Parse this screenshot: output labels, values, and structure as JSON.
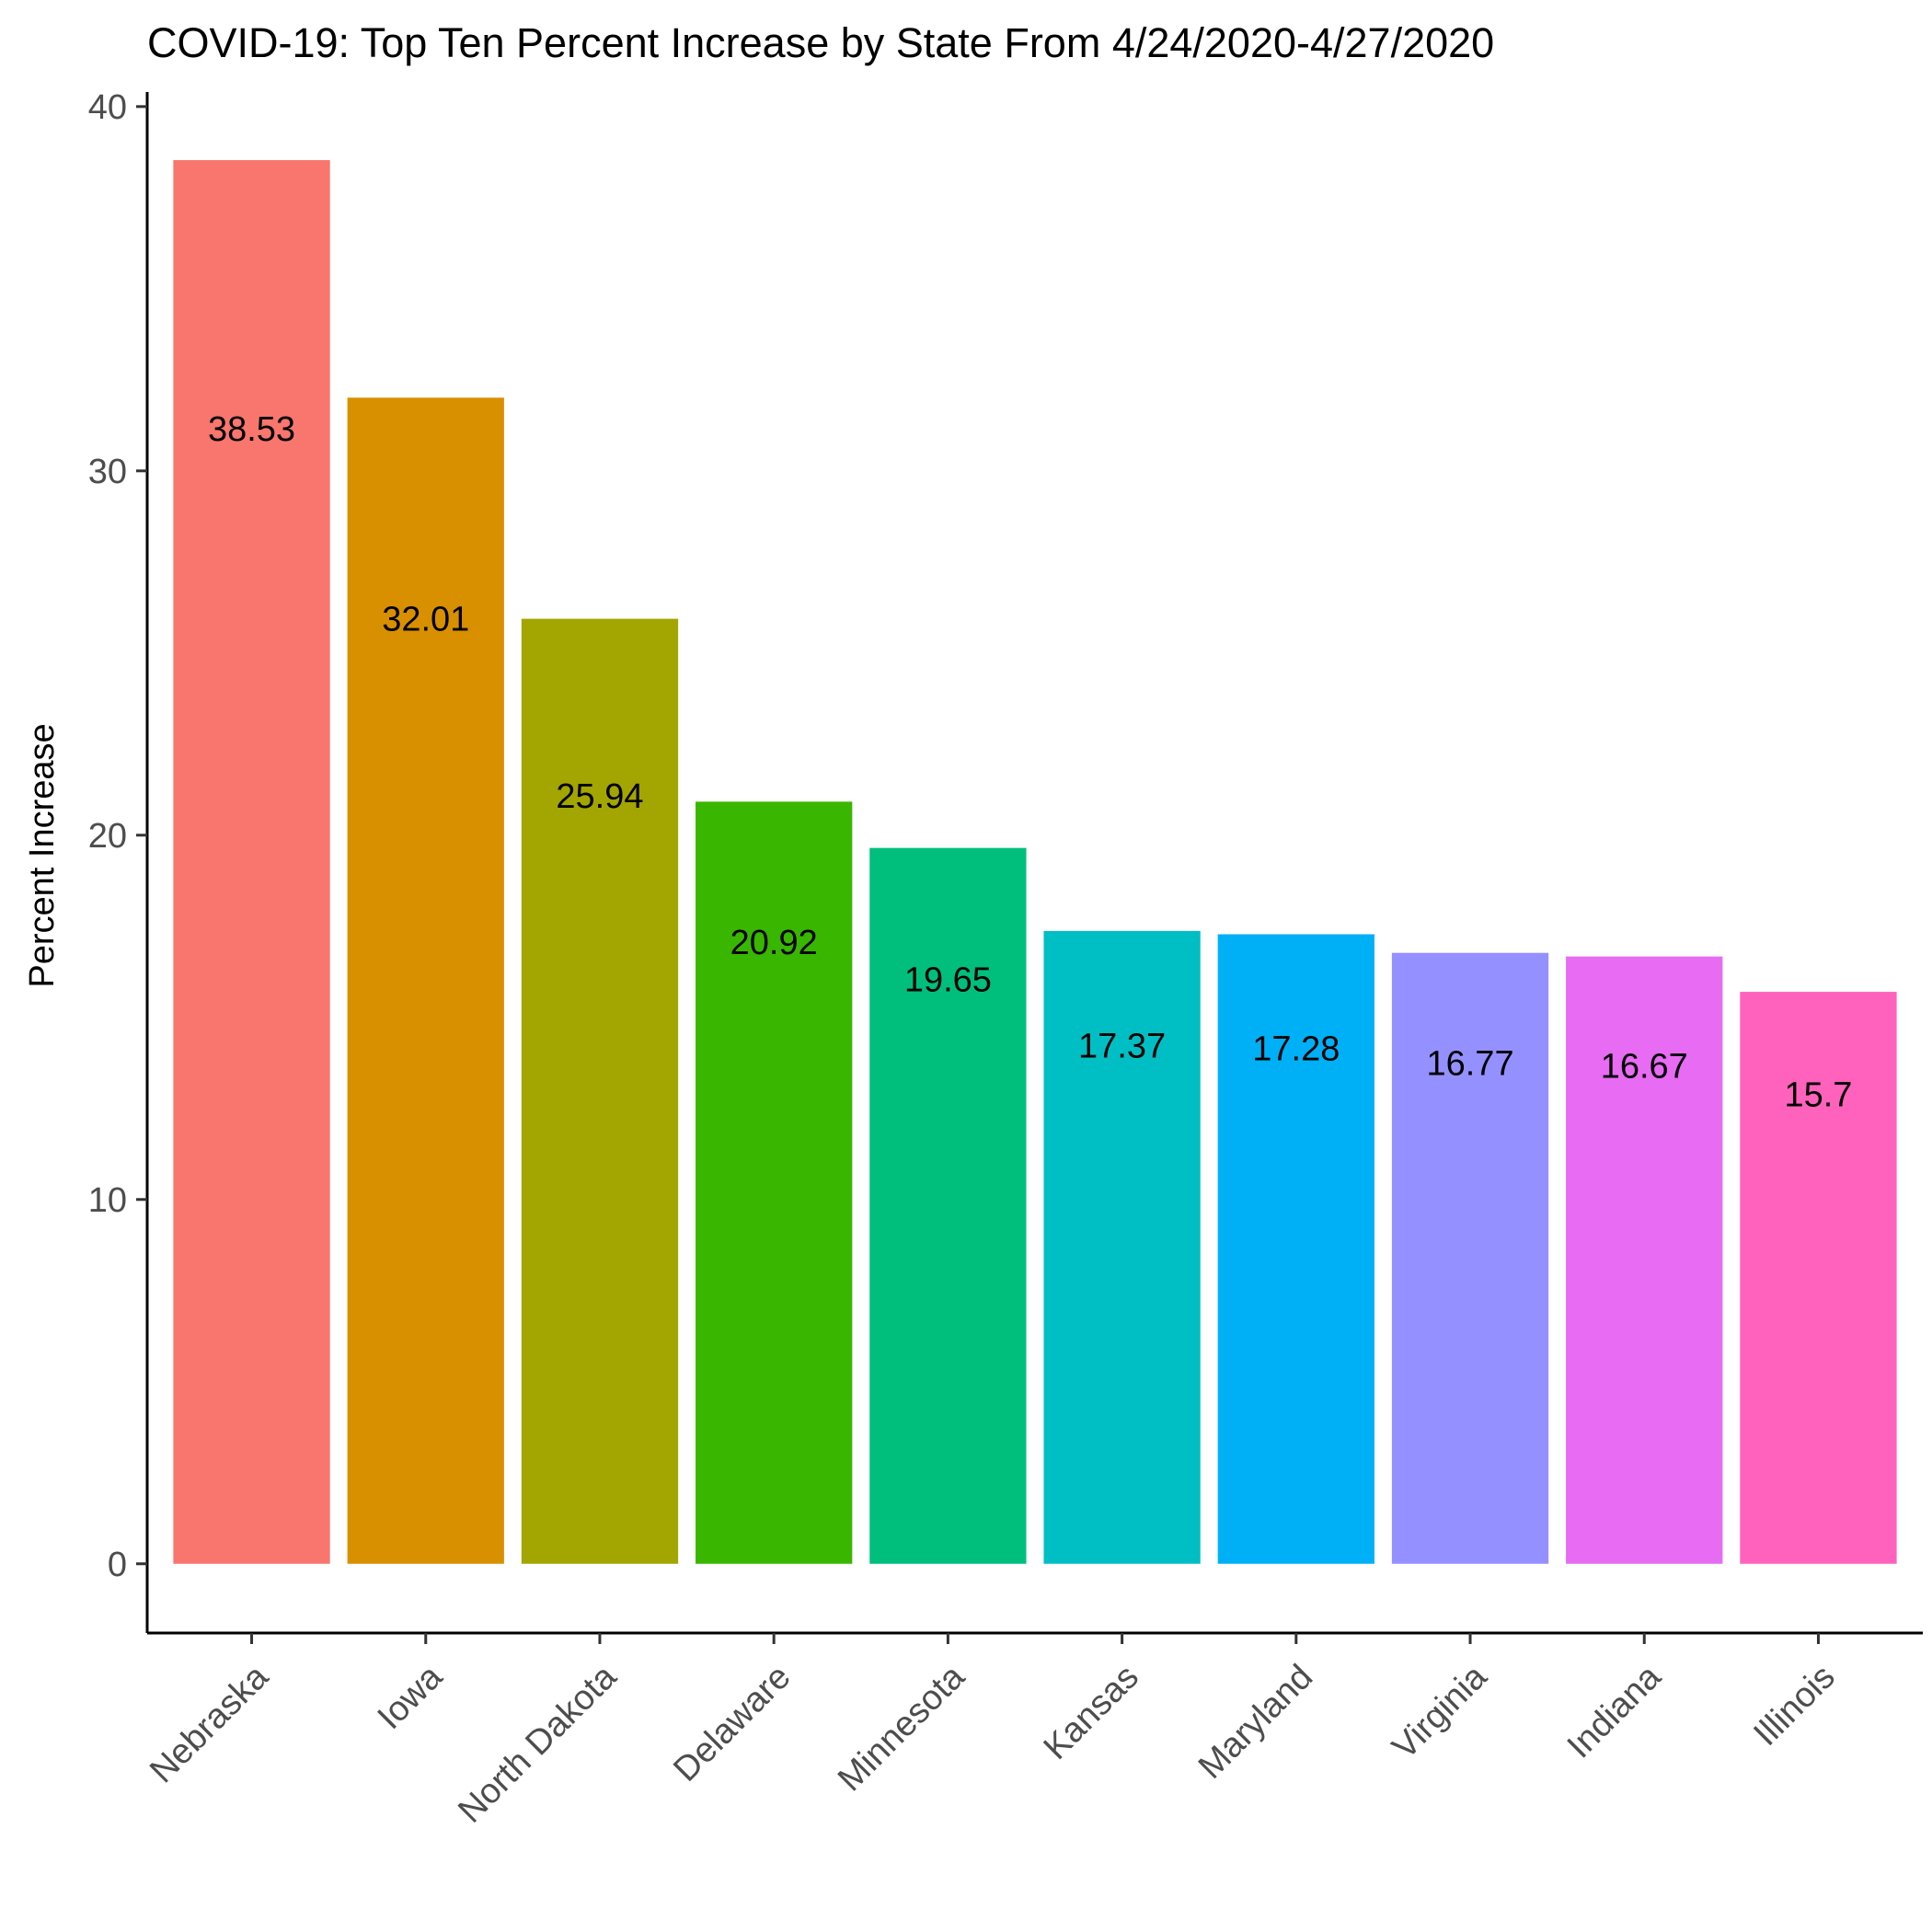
{
  "chart_data": {
    "type": "bar",
    "title": "COVID-19: Top Ten Percent Increase by State From 4/24/2020-4/27/2020",
    "xlabel": "",
    "ylabel": "Percent Increase",
    "categories": [
      "Nebraska",
      "Iowa",
      "North Dakota",
      "Delaware",
      "Minnesota",
      "Kansas",
      "Maryland",
      "Virginia",
      "Indiana",
      "Illinois"
    ],
    "values": [
      38.53,
      32.01,
      25.94,
      20.92,
      19.65,
      17.37,
      17.28,
      16.77,
      16.67,
      15.7
    ],
    "data_labels": [
      "38.53",
      "32.01",
      "25.94",
      "20.92",
      "19.65",
      "17.37",
      "17.28",
      "16.77",
      "16.67",
      "15.7"
    ],
    "colors": [
      "#F8766D",
      "#D89000",
      "#A3A500",
      "#39B600",
      "#00BF7D",
      "#00BFC4",
      "#00B0F6",
      "#9590FF",
      "#E76BF3",
      "#FF62BC"
    ],
    "yticks": [
      0,
      10,
      20,
      30,
      40
    ],
    "ylim": [
      -1.9,
      40.4
    ],
    "grid": false,
    "legend": "none"
  }
}
